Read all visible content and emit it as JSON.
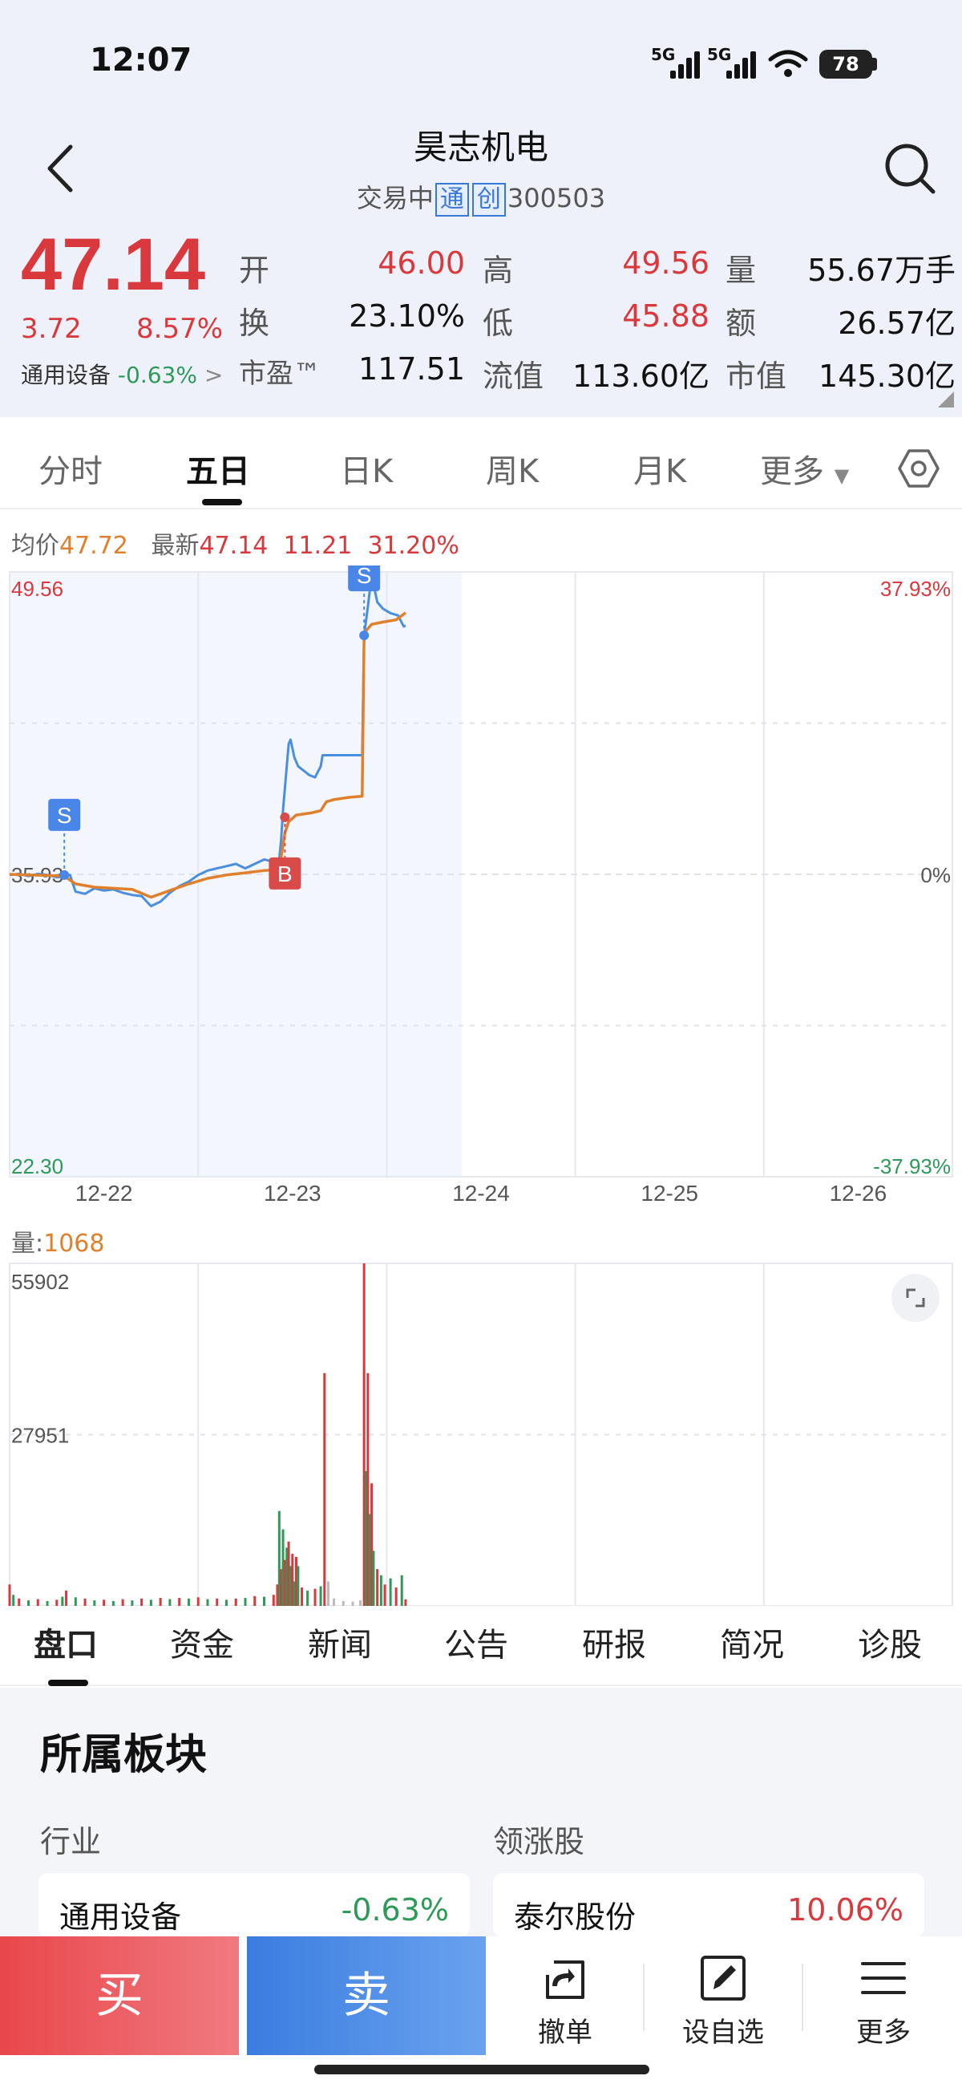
{
  "status_bar": {
    "time": "12:07",
    "net1": "5G",
    "net2": "5G",
    "battery": "78"
  },
  "header": {
    "title": "昊志机电",
    "status": "交易中",
    "tag1": "通",
    "tag2": "创",
    "code": "300503"
  },
  "quote": {
    "price": "47.14",
    "change": "3.72",
    "change_pct": "8.57%",
    "sector_name": "通用设备",
    "sector_pct": "-0.63%",
    "rows": [
      [
        {
          "label": "开",
          "value": "46.00",
          "color": "red"
        },
        {
          "label": "高",
          "value": "49.56",
          "color": "red"
        },
        {
          "label": "量",
          "value": "55.67万手",
          "color": "black"
        }
      ],
      [
        {
          "label": "换",
          "value": "23.10%",
          "color": "black"
        },
        {
          "label": "低",
          "value": "45.88",
          "color": "red"
        },
        {
          "label": "额",
          "value": "26.57亿",
          "color": "black"
        }
      ],
      [
        {
          "label": "市盈™",
          "value": "117.51",
          "color": "black"
        },
        {
          "label": "流值",
          "value": "113.60亿",
          "color": "black"
        },
        {
          "label": "市值",
          "value": "145.30亿",
          "color": "black"
        }
      ]
    ]
  },
  "chart_tabs": [
    "分时",
    "五日",
    "日K",
    "周K",
    "月K",
    "更多"
  ],
  "chart_tabs_active": 1,
  "legend": {
    "avg_label": "均价",
    "avg_value": "47.72",
    "latest_label": "最新",
    "latest_value": "47.14",
    "latest_chg": "11.21",
    "latest_pct": "31.20%"
  },
  "colors": {
    "price_line": "#4a8ee0",
    "avg_line": "#e0802c",
    "up": "#d9393d",
    "down": "#2e9a5a",
    "sell_marker": "#4a86e8",
    "buy_marker": "#d94b48"
  },
  "chart_data": [
    {
      "type": "line",
      "title": "",
      "x": [
        "12-22",
        "12-23",
        "12-24",
        "12-25",
        "12-26"
      ],
      "ylim": [
        22.3,
        49.56
      ],
      "y_axis_left": [
        "49.56",
        "35.93",
        "22.30"
      ],
      "y_axis_right": [
        "37.93%",
        "0%",
        "-37.93%"
      ],
      "series": [
        {
          "name": "最新",
          "points": [
            [
              0.0,
              35.9
            ],
            [
              0.05,
              35.95
            ],
            [
              0.1,
              35.85
            ],
            [
              0.15,
              35.95
            ],
            [
              0.2,
              35.9
            ],
            [
              0.25,
              35.8
            ],
            [
              0.29,
              35.82
            ],
            [
              0.32,
              35.9
            ],
            [
              0.35,
              35.15
            ],
            [
              0.4,
              35.05
            ],
            [
              0.45,
              35.3
            ],
            [
              0.5,
              35.2
            ],
            [
              0.55,
              35.25
            ],
            [
              0.6,
              35.1
            ],
            [
              0.65,
              35.0
            ],
            [
              0.7,
              34.95
            ],
            [
              0.75,
              34.5
            ],
            [
              0.8,
              34.7
            ],
            [
              0.85,
              35.1
            ],
            [
              0.9,
              35.4
            ],
            [
              0.95,
              35.6
            ],
            [
              1.0,
              35.9
            ],
            [
              1.05,
              36.1
            ],
            [
              1.1,
              36.2
            ],
            [
              1.15,
              36.3
            ],
            [
              1.2,
              36.4
            ],
            [
              1.25,
              36.2
            ],
            [
              1.3,
              36.4
            ],
            [
              1.35,
              36.6
            ],
            [
              1.4,
              36.5
            ],
            [
              1.43,
              36.6
            ],
            [
              1.44,
              37.5
            ],
            [
              1.45,
              38.8
            ],
            [
              1.47,
              40.8
            ],
            [
              1.48,
              41.8
            ],
            [
              1.49,
              42.0
            ],
            [
              1.51,
              41.2
            ],
            [
              1.53,
              40.8
            ],
            [
              1.56,
              40.6
            ],
            [
              1.59,
              40.4
            ],
            [
              1.62,
              40.3
            ],
            [
              1.65,
              40.8
            ],
            [
              1.66,
              41.3
            ],
            [
              1.7,
              41.3
            ],
            [
              1.75,
              41.3
            ],
            [
              1.8,
              41.3
            ],
            [
              1.85,
              41.3
            ],
            [
              1.87,
              41.3
            ],
            [
              1.88,
              46.7
            ],
            [
              1.9,
              48.0
            ],
            [
              1.92,
              49.4
            ],
            [
              1.95,
              48.2
            ],
            [
              1.98,
              47.9
            ],
            [
              2.02,
              47.7
            ],
            [
              2.06,
              47.6
            ],
            [
              2.09,
              47.1
            ],
            [
              2.1,
              47.14
            ]
          ]
        },
        {
          "name": "均价",
          "points": [
            [
              0.0,
              35.93
            ],
            [
              0.1,
              35.9
            ],
            [
              0.2,
              35.88
            ],
            [
              0.29,
              35.85
            ],
            [
              0.35,
              35.5
            ],
            [
              0.45,
              35.35
            ],
            [
              0.55,
              35.3
            ],
            [
              0.65,
              35.25
            ],
            [
              0.75,
              34.9
            ],
            [
              0.85,
              35.2
            ],
            [
              0.95,
              35.5
            ],
            [
              1.05,
              35.75
            ],
            [
              1.15,
              35.9
            ],
            [
              1.25,
              36.0
            ],
            [
              1.35,
              36.1
            ],
            [
              1.43,
              36.15
            ],
            [
              1.46,
              37.8
            ],
            [
              1.48,
              38.3
            ],
            [
              1.52,
              38.6
            ],
            [
              1.6,
              38.7
            ],
            [
              1.65,
              38.8
            ],
            [
              1.68,
              39.2
            ],
            [
              1.72,
              39.3
            ],
            [
              1.8,
              39.4
            ],
            [
              1.87,
              39.45
            ],
            [
              1.88,
              46.8
            ],
            [
              1.92,
              47.2
            ],
            [
              1.98,
              47.3
            ],
            [
              2.05,
              47.4
            ],
            [
              2.1,
              47.72
            ]
          ]
        }
      ],
      "markers": [
        {
          "label": "S",
          "x": 0.29,
          "y": 35.9
        },
        {
          "label": "B",
          "x": 1.46,
          "y": 38.5
        },
        {
          "label": "S",
          "x": 1.88,
          "y": 46.7
        }
      ]
    },
    {
      "type": "bar",
      "title": "量",
      "current_value": "1068",
      "ylim": [
        0,
        55902
      ],
      "y_axis": [
        "55902",
        "27951"
      ],
      "x": [
        "12-22",
        "12-23",
        "12-24",
        "12-25",
        "12-26"
      ],
      "series": [
        {
          "name": "量",
          "points": [
            [
              0.0,
              3500,
              "up"
            ],
            [
              0.02,
              1800,
              "down"
            ],
            [
              0.05,
              1200,
              "up"
            ],
            [
              0.1,
              900,
              "down"
            ],
            [
              0.15,
              1100,
              "up"
            ],
            [
              0.2,
              800,
              "down"
            ],
            [
              0.25,
              1000,
              "up"
            ],
            [
              0.28,
              1500,
              "down"
            ],
            [
              0.3,
              2500,
              "up"
            ],
            [
              0.35,
              1400,
              "down"
            ],
            [
              0.4,
              1200,
              "up"
            ],
            [
              0.45,
              900,
              "down"
            ],
            [
              0.5,
              1000,
              "up"
            ],
            [
              0.55,
              800,
              "down"
            ],
            [
              0.6,
              1100,
              "up"
            ],
            [
              0.65,
              900,
              "down"
            ],
            [
              0.7,
              1200,
              "up"
            ],
            [
              0.75,
              1000,
              "down"
            ],
            [
              0.8,
              1300,
              "up"
            ],
            [
              0.85,
              1100,
              "down"
            ],
            [
              0.9,
              1300,
              "up"
            ],
            [
              0.95,
              1200,
              "down"
            ],
            [
              1.0,
              1400,
              "up"
            ],
            [
              1.05,
              1100,
              "down"
            ],
            [
              1.1,
              1200,
              "up"
            ],
            [
              1.15,
              1000,
              "down"
            ],
            [
              1.2,
              1200,
              "up"
            ],
            [
              1.25,
              1300,
              "down"
            ],
            [
              1.3,
              1600,
              "up"
            ],
            [
              1.35,
              1500,
              "down"
            ],
            [
              1.4,
              1800,
              "up"
            ],
            [
              1.42,
              3500,
              "up"
            ],
            [
              1.43,
              15500,
              "down"
            ],
            [
              1.44,
              6000,
              "up"
            ],
            [
              1.45,
              12500,
              "down"
            ],
            [
              1.46,
              7500,
              "up"
            ],
            [
              1.47,
              9500,
              "down"
            ],
            [
              1.48,
              10500,
              "up"
            ],
            [
              1.49,
              6500,
              "down"
            ],
            [
              1.5,
              8500,
              "up"
            ],
            [
              1.51,
              4000,
              "down"
            ],
            [
              1.52,
              8000,
              "up"
            ],
            [
              1.53,
              6500,
              "down"
            ],
            [
              1.55,
              3000,
              "up"
            ],
            [
              1.58,
              2500,
              "down"
            ],
            [
              1.62,
              2800,
              "up"
            ],
            [
              1.65,
              3200,
              "down"
            ],
            [
              1.67,
              38000,
              "up"
            ],
            [
              1.69,
              4000,
              "flat"
            ],
            [
              1.72,
              1200,
              "flat"
            ],
            [
              1.77,
              800,
              "flat"
            ],
            [
              1.82,
              700,
              "flat"
            ],
            [
              1.86,
              900,
              "flat"
            ],
            [
              1.88,
              55902,
              "up"
            ],
            [
              1.89,
              22000,
              "down"
            ],
            [
              1.9,
              38000,
              "up"
            ],
            [
              1.91,
              15000,
              "down"
            ],
            [
              1.92,
              20000,
              "up"
            ],
            [
              1.93,
              9000,
              "down"
            ],
            [
              1.95,
              6000,
              "up"
            ],
            [
              1.97,
              5000,
              "down"
            ],
            [
              1.99,
              3500,
              "up"
            ],
            [
              2.02,
              4500,
              "down"
            ],
            [
              2.05,
              3000,
              "up"
            ],
            [
              2.08,
              5000,
              "down"
            ],
            [
              2.1,
              1068,
              "up"
            ]
          ]
        }
      ]
    }
  ],
  "bottom_tabs": [
    "盘口",
    "资金",
    "新闻",
    "公告",
    "研报",
    "简况",
    "诊股"
  ],
  "bottom_tabs_active": 0,
  "sector": {
    "title": "所属板块",
    "industry_label": "行业",
    "leader_label": "领涨股",
    "industry_name": "通用设备",
    "industry_pct": "-0.63%",
    "leader_name": "泰尔股份",
    "leader_pct": "10.06%"
  },
  "actions": {
    "buy": "买",
    "sell": "卖",
    "cancel": "撤单",
    "watchlist": "设自选",
    "more": "更多"
  }
}
